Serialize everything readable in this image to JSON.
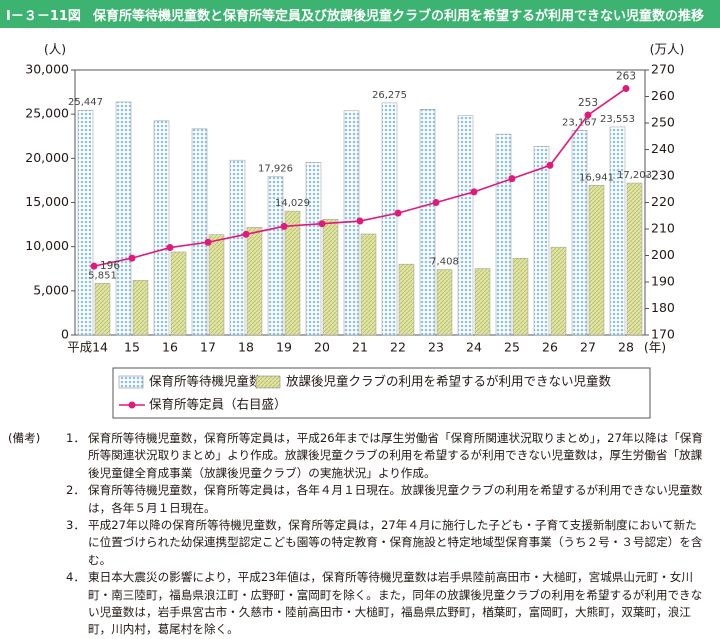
{
  "header": {
    "figure_number": "Ⅰ－３－11図",
    "title": "保育所等待機児童数と保育所等定員及び放課後児童クラブの利用を希望するが利用できない児童数の推移"
  },
  "chart_data": {
    "type": "bar",
    "y_unit": "(人)",
    "y2_unit": "(万人)",
    "x_unit": "(年)",
    "categories": [
      "平成14",
      "15",
      "16",
      "17",
      "18",
      "19",
      "20",
      "21",
      "22",
      "23",
      "24",
      "25",
      "26",
      "27",
      "28"
    ],
    "series": [
      {
        "name": "保育所等待機児童数",
        "color": "#8fc1e6",
        "values": [
          25447,
          26383,
          24245,
          23338,
          19794,
          17926,
          19550,
          25384,
          26275,
          25556,
          24825,
          22741,
          21371,
          23167,
          23553
        ],
        "value_labels": [
          "25,447",
          null,
          null,
          null,
          null,
          "17,926",
          null,
          null,
          "26,275",
          null,
          null,
          null,
          null,
          "23,167",
          "23,553"
        ]
      },
      {
        "name": "放課後児童クラブの利用を希望するが利用できない児童数",
        "color": "#dfe3a6",
        "values": [
          5851,
          6180,
          9400,
          11360,
          12189,
          14029,
          13096,
          11438,
          8021,
          7408,
          7521,
          8689,
          9945,
          16941,
          17203
        ],
        "value_labels": [
          "5,851",
          null,
          null,
          null,
          null,
          "14,029",
          null,
          null,
          null,
          "7,408",
          null,
          null,
          null,
          "16,941",
          "17,203"
        ]
      },
      {
        "name": "保育所等定員（右目盛）",
        "color": "#e0197d",
        "type": "line",
        "axis": "y2",
        "values": [
          196,
          199,
          203,
          205,
          208,
          211,
          212,
          213,
          216,
          220,
          224,
          229,
          234,
          253,
          263
        ],
        "value_labels": [
          "196",
          null,
          null,
          null,
          null,
          null,
          null,
          null,
          null,
          null,
          null,
          null,
          null,
          "253",
          "263"
        ]
      }
    ],
    "ylim": [
      0,
      30000
    ],
    "yticks": [
      0,
      {
        "value": 5000,
        "label": "5,000"
      },
      {
        "value": 10000,
        "label": "10,000"
      },
      {
        "value": 15000,
        "label": "15,000"
      },
      {
        "value": 20000,
        "label": "20,000"
      },
      {
        "value": 25000,
        "label": "25,000"
      },
      {
        "value": 30000,
        "label": "30,000"
      }
    ],
    "y2lim": [
      170,
      270
    ],
    "y2ticks": [
      170,
      180,
      190,
      200,
      210,
      220,
      230,
      240,
      250,
      260,
      270
    ],
    "grid": true
  },
  "notes": {
    "label": "(備考)",
    "items": [
      {
        "number": "1．",
        "text": "保育所等待機児童数，保育所等定員は，平成26年までは厚生労働省「保育所関連状況取りまとめ」，27年以降は「保育所等関連状況取りまとめ」より作成。放課後児童クラブの利用を希望するが利用できない児童数は，厚生労働省「放課後児童健全育成事業（放課後児童クラブ）の実施状況」より作成。"
      },
      {
        "number": "2．",
        "text": "保育所等待機児童数，保育所等定員は，各年４月１日現在。放課後児童クラブの利用を希望するが利用できない児童数は，各年５月１日現在。"
      },
      {
        "number": "3．",
        "text": "平成27年以降の保育所等待機児童数，保育所等定員は，27年４月に施行した子ども・子育て支援新制度において新たに位置づけられた幼保連携型認定こども園等の特定教育・保育施設と特定地域型保育事業（うち２号・３号認定）を含む。"
      },
      {
        "number": "4．",
        "text": "東日本大震災の影響により，平成23年値は，保育所等待機児童数は岩手県陸前高田市・大槌町，宮城県山元町・女川町・南三陸町，福島県浪江町・広野町・富岡町を除く。また，同年の放課後児童クラブの利用を希望するが利用できない児童数は，岩手県宮古市・久慈市・陸前高田市・大槌町，福島県広野町，楢葉町，富岡町，大熊町，双葉町，浪江町，川内村，葛尾村を除く。"
      }
    ]
  }
}
